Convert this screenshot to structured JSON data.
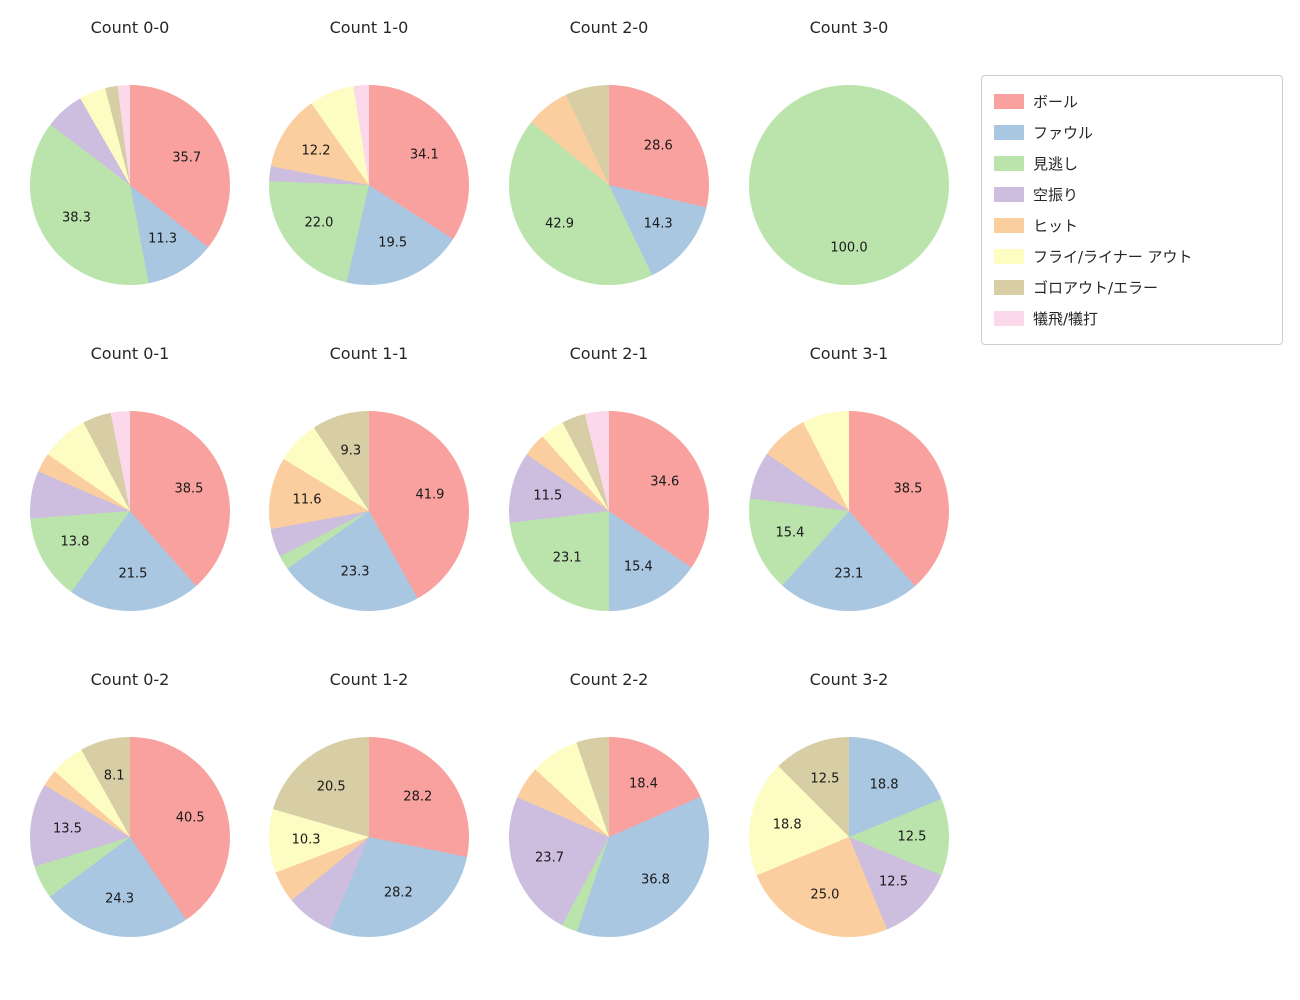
{
  "categories": [
    {
      "label": "ボール",
      "color": "#f8a19e"
    },
    {
      "label": "ファウル",
      "color": "#aac7e1"
    },
    {
      "label": "見逃し",
      "color": "#bbe3ac"
    },
    {
      "label": "空振り",
      "color": "#cdbddf"
    },
    {
      "label": "ヒット",
      "color": "#face9f"
    },
    {
      "label": "フライ/ライナー アウト",
      "color": "#fdfcc3"
    },
    {
      "label": "ゴロアウト/エラー",
      "color": "#d7cea5"
    },
    {
      "label": "犠飛/犠打",
      "color": "#fbd8ea"
    }
  ],
  "label_min_show": 8.0,
  "label_format_decimals": 1,
  "chart_data": [
    {
      "type": "pie",
      "title": "Count 0-0",
      "legend_position": "right",
      "values": [
        35.7,
        11.3,
        38.3,
        6.4,
        0,
        4.3,
        2.0,
        2.0
      ]
    },
    {
      "type": "pie",
      "title": "Count 1-0",
      "legend_position": "right",
      "values": [
        34.1,
        19.5,
        22.0,
        2.4,
        12.2,
        7.3,
        0,
        2.5
      ]
    },
    {
      "type": "pie",
      "title": "Count 2-0",
      "legend_position": "right",
      "values": [
        28.6,
        14.3,
        42.9,
        0,
        7.1,
        0,
        7.1,
        0
      ]
    },
    {
      "type": "pie",
      "title": "Count 3-0",
      "legend_position": "right",
      "values": [
        0,
        0,
        100.0,
        0,
        0,
        0,
        0,
        0
      ]
    },
    {
      "type": "pie",
      "title": "Count 0-1",
      "legend_position": "right",
      "values": [
        38.5,
        21.5,
        13.8,
        7.7,
        3.1,
        7.7,
        4.6,
        3.1
      ]
    },
    {
      "type": "pie",
      "title": "Count 1-1",
      "legend_position": "right",
      "values": [
        41.9,
        23.3,
        2.3,
        4.6,
        11.6,
        7.0,
        9.3,
        0
      ]
    },
    {
      "type": "pie",
      "title": "Count 2-1",
      "legend_position": "right",
      "values": [
        34.6,
        15.4,
        23.1,
        11.5,
        3.8,
        3.9,
        3.8,
        3.9
      ]
    },
    {
      "type": "pie",
      "title": "Count 3-1",
      "legend_position": "right",
      "values": [
        38.5,
        23.1,
        15.4,
        7.7,
        7.7,
        7.6,
        0,
        0
      ]
    },
    {
      "type": "pie",
      "title": "Count 0-2",
      "legend_position": "right",
      "values": [
        40.5,
        24.3,
        5.4,
        13.5,
        2.7,
        5.5,
        8.1,
        0
      ]
    },
    {
      "type": "pie",
      "title": "Count 1-2",
      "legend_position": "right",
      "values": [
        28.2,
        28.2,
        0,
        7.7,
        5.1,
        10.3,
        20.5,
        0
      ]
    },
    {
      "type": "pie",
      "title": "Count 2-2",
      "legend_position": "right",
      "values": [
        18.4,
        36.8,
        2.6,
        23.7,
        5.3,
        7.9,
        5.3,
        0
      ]
    },
    {
      "type": "pie",
      "title": "Count 3-2",
      "legend_position": "right",
      "values": [
        0,
        18.8,
        12.5,
        12.5,
        25.0,
        18.8,
        12.5,
        0
      ]
    }
  ]
}
